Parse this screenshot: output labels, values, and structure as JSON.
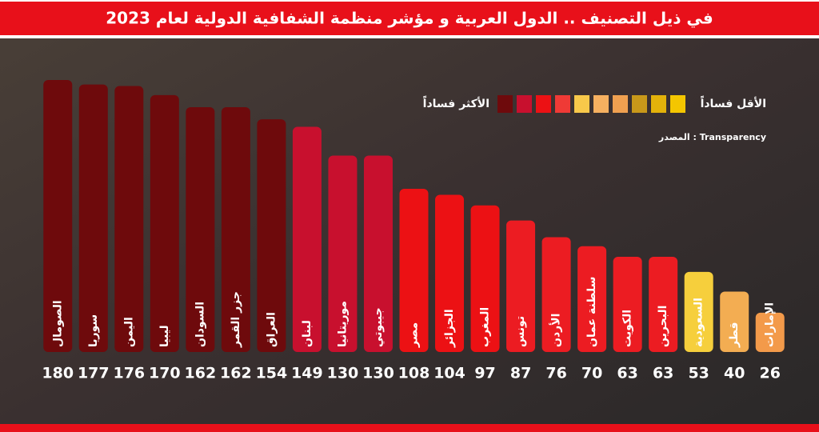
{
  "chart_data": {
    "type": "bar",
    "title": "في ذيل التصنيف .. الدول العربية و مؤشر منظمة الشفافية الدولية لعام 2023",
    "categories": [
      "الصومال",
      "سوريا",
      "اليمن",
      "ليبيا",
      "السودان",
      "جزر القمر",
      "العراق",
      "لبنان",
      "موريتانيا",
      "جيبوتي",
      "مصر",
      "الجزائر",
      "المغرب",
      "تونس",
      "الأردن",
      "سلطنة عمان",
      "الكويت",
      "البحرين",
      "السعودية",
      "قطر",
      "الإمارات"
    ],
    "values": [
      180,
      177,
      176,
      170,
      162,
      162,
      154,
      149,
      130,
      130,
      108,
      104,
      97,
      87,
      76,
      70,
      63,
      63,
      53,
      40,
      26
    ],
    "colors": [
      "#6e0a0c",
      "#6e0a0c",
      "#6e0a0c",
      "#6e0a0c",
      "#6e0a0c",
      "#6e0a0c",
      "#6e0a0c",
      "#c8102e",
      "#c8102e",
      "#c8102e",
      "#ec1114",
      "#ec1114",
      "#ec1114",
      "#ec1c22",
      "#ec1c22",
      "#ec1c22",
      "#ec1c22",
      "#ec1c22",
      "#f6cf3c",
      "#f3ad52",
      "#f39a4a"
    ],
    "legend": {
      "low_label": "الأقل فساداً",
      "high_label": "الأكثر فساداً",
      "colors": [
        "#6e0a0c",
        "#c8102e",
        "#ec1114",
        "#ef3a36",
        "#f8c84a",
        "#f6b060",
        "#f0a050",
        "#c8981a",
        "#e3b20a",
        "#f4c600"
      ]
    },
    "source": "المصدر : Transparency"
  }
}
